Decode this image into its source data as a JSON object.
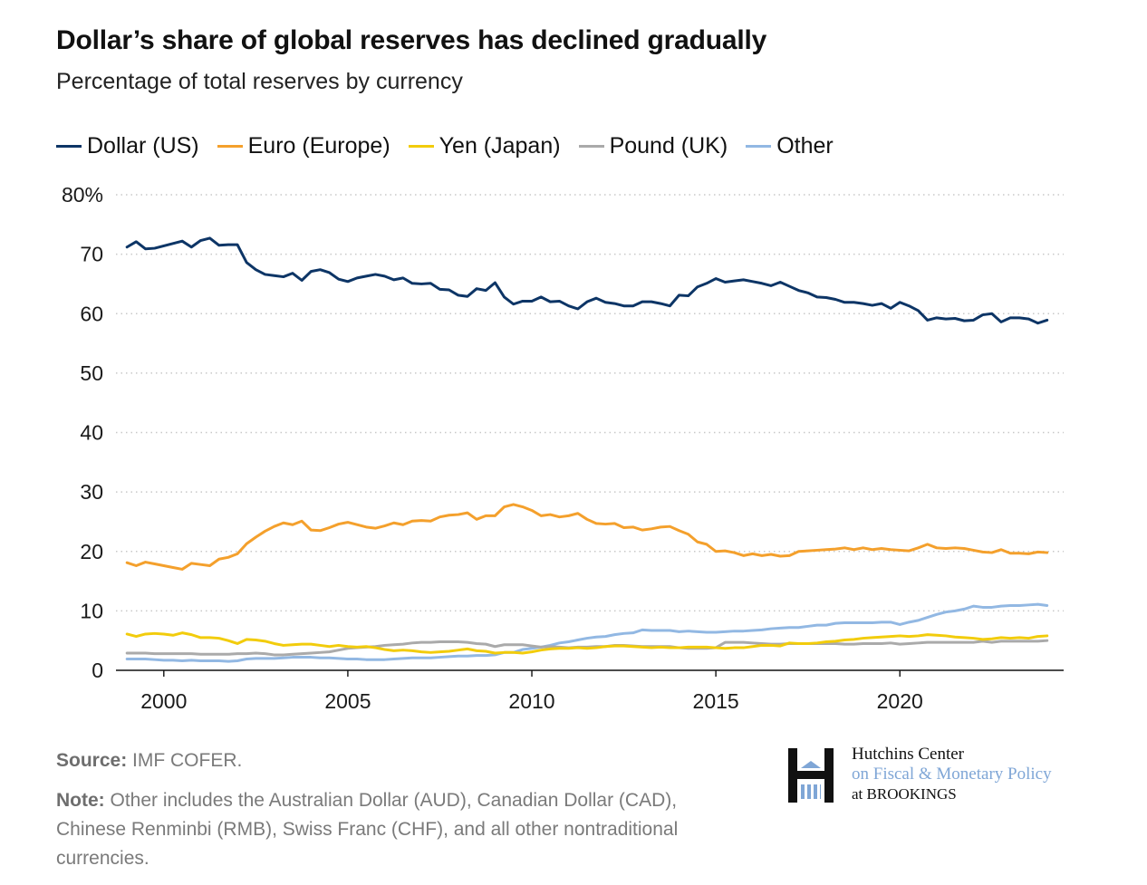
{
  "title": "Dollar’s share of global reserves has declined gradually",
  "subtitle": "Percentage of total reserves by currency",
  "source_label": "Source:",
  "source_text": " IMF COFER.",
  "note_label": "Note:",
  "note_text": " Other includes the Australian Dollar (AUD), Canadian Dollar (CAD), Chinese Renminbi (RMB), Swiss Franc (CHF), and all other nontraditional currencies.",
  "logo": {
    "line1": "Hutchins Center",
    "line2": "on Fiscal & Monetary Policy",
    "line3": "at BROOKINGS"
  },
  "colors": {
    "dollar": "#0d3566",
    "euro": "#f4a02c",
    "yen": "#f2cc0c",
    "pound": "#aaaaaa",
    "other": "#92b8e3"
  },
  "chart_data": {
    "type": "line",
    "title": "Dollar’s share of global reserves has declined gradually",
    "subtitle": "Percentage of total reserves by currency",
    "xlabel": "",
    "ylabel": "",
    "xlim": [
      1998.7,
      2024.45
    ],
    "ylim": [
      0,
      80
    ],
    "x_ticks": [
      2000,
      2005,
      2010,
      2015,
      2020
    ],
    "y_ticks": [
      0,
      10,
      20,
      30,
      40,
      50,
      60,
      70,
      80
    ],
    "y_tick_labels": [
      "0",
      "10",
      "20",
      "30",
      "40",
      "50",
      "60",
      "70",
      "80%"
    ],
    "grid": "horizontal dotted",
    "legend": "top-left",
    "x": [
      1999.0,
      1999.25,
      1999.5,
      1999.75,
      2000.0,
      2000.25,
      2000.5,
      2000.75,
      2001.0,
      2001.25,
      2001.5,
      2001.75,
      2002.0,
      2002.25,
      2002.5,
      2002.75,
      2003.0,
      2003.25,
      2003.5,
      2003.75,
      2004.0,
      2004.25,
      2004.5,
      2004.75,
      2005.0,
      2005.25,
      2005.5,
      2005.75,
      2006.0,
      2006.25,
      2006.5,
      2006.75,
      2007.0,
      2007.25,
      2007.5,
      2007.75,
      2008.0,
      2008.25,
      2008.5,
      2008.75,
      2009.0,
      2009.25,
      2009.5,
      2009.75,
      2010.0,
      2010.25,
      2010.5,
      2010.75,
      2011.0,
      2011.25,
      2011.5,
      2011.75,
      2012.0,
      2012.25,
      2012.5,
      2012.75,
      2013.0,
      2013.25,
      2013.5,
      2013.75,
      2014.0,
      2014.25,
      2014.5,
      2014.75,
      2015.0,
      2015.25,
      2015.5,
      2015.75,
      2016.0,
      2016.25,
      2016.5,
      2016.75,
      2017.0,
      2017.25,
      2017.5,
      2017.75,
      2018.0,
      2018.25,
      2018.5,
      2018.75,
      2019.0,
      2019.25,
      2019.5,
      2019.75,
      2020.0,
      2020.25,
      2020.5,
      2020.75,
      2021.0,
      2021.25,
      2021.5,
      2021.75,
      2022.0,
      2022.25,
      2022.5,
      2022.75,
      2023.0,
      2023.25,
      2023.5,
      2023.75,
      2024.0
    ],
    "series": [
      {
        "name": "Dollar (US)",
        "color": "#0d3566",
        "values": [
          71.2,
          72.1,
          70.9,
          71.0,
          71.4,
          71.8,
          72.2,
          71.2,
          72.3,
          72.7,
          71.5,
          71.6,
          71.6,
          68.6,
          67.4,
          66.6,
          66.4,
          66.2,
          66.8,
          65.6,
          67.1,
          67.4,
          66.9,
          65.8,
          65.4,
          66.0,
          66.3,
          66.6,
          66.3,
          65.7,
          66.0,
          65.1,
          65.0,
          65.1,
          64.1,
          64.0,
          63.1,
          62.9,
          64.2,
          63.9,
          65.2,
          62.8,
          61.6,
          62.1,
          62.1,
          62.8,
          62.0,
          62.1,
          61.3,
          60.8,
          62.0,
          62.6,
          61.9,
          61.7,
          61.3,
          61.3,
          62.0,
          62.0,
          61.7,
          61.3,
          63.1,
          63.0,
          64.5,
          65.1,
          65.9,
          65.3,
          65.5,
          65.7,
          65.4,
          65.1,
          64.7,
          65.3,
          64.6,
          63.9,
          63.5,
          62.8,
          62.7,
          62.4,
          61.9,
          61.9,
          61.7,
          61.4,
          61.7,
          60.9,
          61.9,
          61.3,
          60.5,
          58.9,
          59.3,
          59.1,
          59.2,
          58.8,
          58.9,
          59.8,
          60.0,
          58.6,
          59.3,
          59.3,
          59.1,
          58.4,
          58.9
        ]
      },
      {
        "name": "Euro (Europe)",
        "color": "#f4a02c",
        "values": [
          18.1,
          17.6,
          18.2,
          17.9,
          17.6,
          17.3,
          17.0,
          18.0,
          17.8,
          17.6,
          18.7,
          19.0,
          19.6,
          21.3,
          22.4,
          23.4,
          24.2,
          24.8,
          24.5,
          25.1,
          23.6,
          23.5,
          24.0,
          24.6,
          24.9,
          24.5,
          24.1,
          23.9,
          24.3,
          24.8,
          24.5,
          25.1,
          25.2,
          25.1,
          25.8,
          26.1,
          26.2,
          26.5,
          25.4,
          26.0,
          26.0,
          27.5,
          27.9,
          27.5,
          26.9,
          26.0,
          26.2,
          25.8,
          26.0,
          26.4,
          25.4,
          24.7,
          24.6,
          24.7,
          24.0,
          24.1,
          23.6,
          23.8,
          24.1,
          24.2,
          23.5,
          22.9,
          21.6,
          21.2,
          20.0,
          20.1,
          19.8,
          19.3,
          19.6,
          19.3,
          19.5,
          19.2,
          19.3,
          20.0,
          20.1,
          20.2,
          20.3,
          20.4,
          20.6,
          20.3,
          20.6,
          20.3,
          20.5,
          20.3,
          20.2,
          20.1,
          20.6,
          21.2,
          20.6,
          20.5,
          20.6,
          20.5,
          20.2,
          19.9,
          19.8,
          20.3,
          19.7,
          19.7,
          19.6,
          19.9,
          19.8
        ]
      },
      {
        "name": "Yen (Japan)",
        "color": "#f2cc0c",
        "values": [
          6.1,
          5.7,
          6.1,
          6.2,
          6.1,
          5.9,
          6.3,
          6.0,
          5.5,
          5.5,
          5.4,
          5.0,
          4.5,
          5.2,
          5.1,
          4.9,
          4.5,
          4.2,
          4.3,
          4.4,
          4.4,
          4.2,
          4.0,
          4.2,
          4.0,
          3.9,
          4.0,
          3.8,
          3.5,
          3.3,
          3.4,
          3.3,
          3.1,
          3.0,
          3.1,
          3.2,
          3.4,
          3.6,
          3.3,
          3.2,
          2.9,
          3.0,
          3.0,
          2.9,
          3.1,
          3.4,
          3.6,
          3.7,
          3.7,
          3.8,
          3.7,
          3.8,
          4.0,
          4.1,
          4.1,
          4.0,
          3.9,
          3.8,
          3.9,
          3.8,
          3.8,
          3.9,
          3.9,
          3.9,
          3.8,
          3.7,
          3.8,
          3.8,
          4.0,
          4.2,
          4.2,
          4.1,
          4.6,
          4.5,
          4.5,
          4.6,
          4.8,
          4.9,
          5.1,
          5.2,
          5.4,
          5.5,
          5.6,
          5.7,
          5.8,
          5.7,
          5.8,
          6.0,
          5.9,
          5.8,
          5.6,
          5.5,
          5.4,
          5.2,
          5.3,
          5.5,
          5.4,
          5.5,
          5.4,
          5.7,
          5.8
        ]
      },
      {
        "name": "Pound (UK)",
        "color": "#aaaaaa",
        "values": [
          2.9,
          2.9,
          2.9,
          2.8,
          2.8,
          2.8,
          2.8,
          2.8,
          2.7,
          2.7,
          2.7,
          2.7,
          2.8,
          2.8,
          2.9,
          2.8,
          2.6,
          2.6,
          2.7,
          2.8,
          2.9,
          3.0,
          3.1,
          3.4,
          3.7,
          3.8,
          3.9,
          4.0,
          4.2,
          4.3,
          4.4,
          4.6,
          4.7,
          4.7,
          4.8,
          4.8,
          4.8,
          4.7,
          4.5,
          4.4,
          4.0,
          4.3,
          4.3,
          4.3,
          4.1,
          3.9,
          4.0,
          3.9,
          3.8,
          3.9,
          3.9,
          4.0,
          4.0,
          4.2,
          4.2,
          4.1,
          4.0,
          4.0,
          4.0,
          4.0,
          3.8,
          3.7,
          3.7,
          3.7,
          3.8,
          4.7,
          4.7,
          4.7,
          4.6,
          4.5,
          4.4,
          4.4,
          4.5,
          4.5,
          4.5,
          4.5,
          4.5,
          4.5,
          4.4,
          4.4,
          4.5,
          4.5,
          4.5,
          4.6,
          4.4,
          4.5,
          4.6,
          4.7,
          4.7,
          4.7,
          4.7,
          4.7,
          4.7,
          4.9,
          4.7,
          4.9,
          4.9,
          4.9,
          4.9,
          4.9,
          5.0
        ]
      },
      {
        "name": "Other",
        "color": "#92b8e3",
        "values": [
          1.9,
          1.9,
          1.9,
          1.8,
          1.7,
          1.7,
          1.6,
          1.7,
          1.6,
          1.6,
          1.6,
          1.5,
          1.6,
          1.9,
          2.0,
          2.0,
          2.0,
          2.1,
          2.2,
          2.2,
          2.2,
          2.1,
          2.1,
          2.0,
          1.9,
          1.9,
          1.8,
          1.8,
          1.8,
          1.9,
          2.0,
          2.1,
          2.1,
          2.1,
          2.2,
          2.3,
          2.4,
          2.4,
          2.5,
          2.5,
          2.6,
          3.0,
          3.0,
          3.5,
          3.7,
          3.9,
          4.2,
          4.6,
          4.8,
          5.1,
          5.4,
          5.6,
          5.7,
          6.0,
          6.2,
          6.3,
          6.8,
          6.7,
          6.7,
          6.7,
          6.5,
          6.6,
          6.5,
          6.4,
          6.4,
          6.5,
          6.6,
          6.6,
          6.7,
          6.8,
          7.0,
          7.1,
          7.2,
          7.2,
          7.4,
          7.6,
          7.6,
          7.9,
          8.0,
          8.0,
          8.0,
          8.0,
          8.1,
          8.1,
          7.7,
          8.1,
          8.4,
          8.9,
          9.4,
          9.8,
          10.0,
          10.3,
          10.8,
          10.6,
          10.6,
          10.8,
          10.9,
          10.9,
          11.0,
          11.1,
          10.9
        ]
      }
    ]
  }
}
